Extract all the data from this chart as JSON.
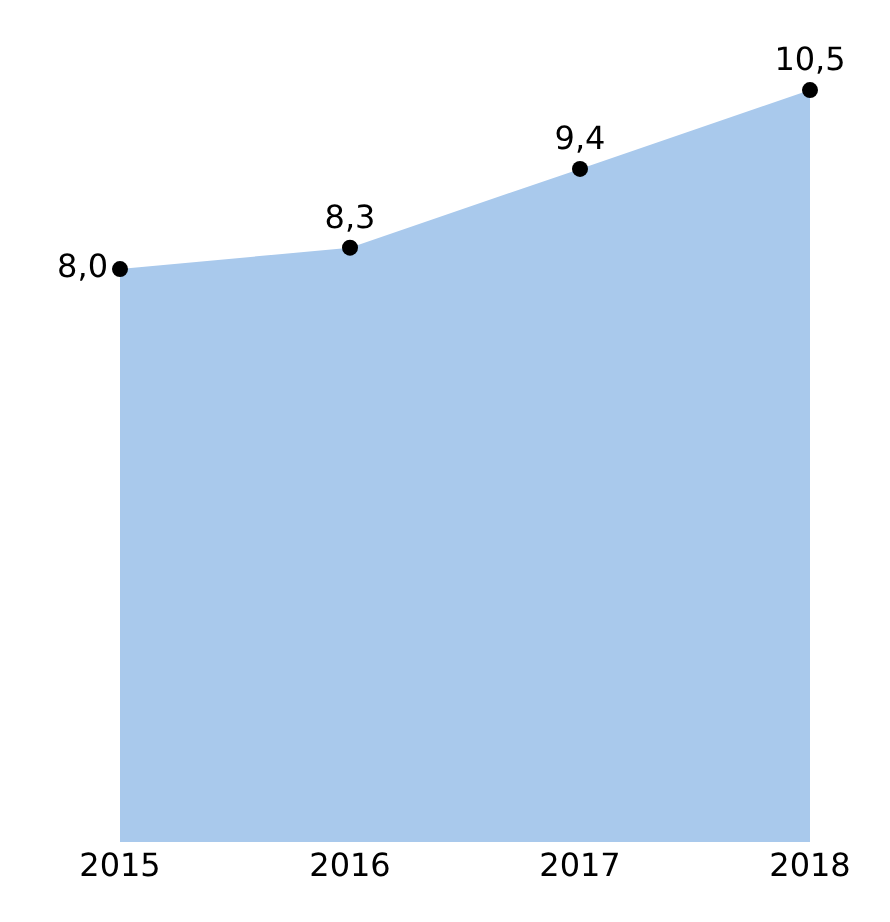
{
  "chart_data": {
    "type": "area",
    "categories": [
      "2015",
      "2016",
      "2017",
      "2018"
    ],
    "series": [
      {
        "color": "#a9c9ec",
        "values": [
          8.0,
          8.3,
          9.4,
          10.5
        ],
        "value_labels": [
          "8,0",
          "8,3",
          "9,4",
          "10,5"
        ]
      }
    ],
    "marker": "circle",
    "tick_labels": "x"
  }
}
